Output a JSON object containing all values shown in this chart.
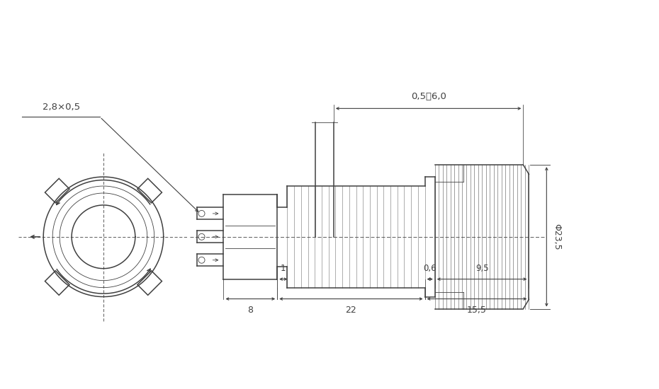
{
  "bg_color": "#ffffff",
  "line_color": "#404040",
  "lw_main": 1.1,
  "lw_thin": 0.6,
  "lw_dim": 0.8,
  "annotation_2_8x0_5": "2,8×0,5",
  "annotation_05_60": "0,5至6,0",
  "annotation_phi": "Φ23,5",
  "dim_8": "8",
  "dim_22": "22",
  "dim_15_5": "15,5",
  "dim_1": "1",
  "dim_0_6": "0,6",
  "dim_9_5": "9,5",
  "fs_dim": 9,
  "fs_annot": 9.5
}
